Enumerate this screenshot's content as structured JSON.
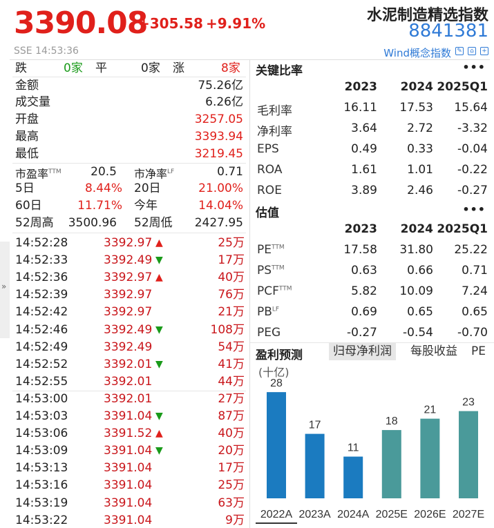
{
  "header": {
    "price": "3390.08",
    "change": "+305.58",
    "change_pct": "+9.91%",
    "name": "水泥制造精选指数",
    "code": "8841381",
    "exchange_time": "SSE  14:53:36",
    "concept_link": "Wind概念指数"
  },
  "stats": {
    "breadth": {
      "down_label": "跌",
      "down": "0家",
      "flat_label": "平",
      "flat": "0家",
      "up_label": "涨",
      "up": "8家"
    },
    "amount": {
      "label": "金额",
      "value": "75.26亿"
    },
    "volume": {
      "label": "成交量",
      "value": "6.26亿"
    },
    "open": {
      "label": "开盘",
      "value": "3257.05"
    },
    "high": {
      "label": "最高",
      "value": "3393.94"
    },
    "low": {
      "label": "最低",
      "value": "3219.45"
    },
    "pe": {
      "label": "市盈率TTM",
      "value": "20.5"
    },
    "pb": {
      "label": "市净率LF",
      "value": "0.71"
    },
    "d5": {
      "label": "5日",
      "value": "8.44%"
    },
    "d20": {
      "label": "20日",
      "value": "21.00%"
    },
    "d60": {
      "label": "60日",
      "value": "11.71%"
    },
    "ytd": {
      "label": "今年",
      "value": "14.04%"
    },
    "w52h": {
      "label": "52周高",
      "value": "3500.96"
    },
    "w52l": {
      "label": "52周低",
      "value": "2427.95"
    }
  },
  "ticks": [
    {
      "time": "14:52:28",
      "price": "3392.97",
      "dir": "up",
      "vol": "25万"
    },
    {
      "time": "14:52:33",
      "price": "3392.49",
      "dir": "down",
      "vol": "17万"
    },
    {
      "time": "14:52:36",
      "price": "3392.97",
      "dir": "up",
      "vol": "40万"
    },
    {
      "time": "14:52:39",
      "price": "3392.97",
      "dir": "",
      "vol": "76万"
    },
    {
      "time": "14:52:42",
      "price": "3392.97",
      "dir": "",
      "vol": "21万"
    },
    {
      "time": "14:52:46",
      "price": "3392.49",
      "dir": "down",
      "vol": "108万"
    },
    {
      "time": "14:52:49",
      "price": "3392.49",
      "dir": "",
      "vol": "54万"
    },
    {
      "time": "14:52:52",
      "price": "3392.01",
      "dir": "down",
      "vol": "41万"
    },
    {
      "time": "14:52:55",
      "price": "3392.01",
      "dir": "",
      "vol": "44万"
    },
    {
      "time": "14:53:00",
      "price": "3392.01",
      "dir": "",
      "vol": "27万"
    },
    {
      "time": "14:53:03",
      "price": "3391.04",
      "dir": "down",
      "vol": "87万"
    },
    {
      "time": "14:53:06",
      "price": "3391.52",
      "dir": "up",
      "vol": "40万"
    },
    {
      "time": "14:53:09",
      "price": "3391.04",
      "dir": "down",
      "vol": "20万"
    },
    {
      "time": "14:53:13",
      "price": "3391.04",
      "dir": "",
      "vol": "17万"
    },
    {
      "time": "14:53:16",
      "price": "3391.04",
      "dir": "",
      "vol": "25万"
    },
    {
      "time": "14:53:19",
      "price": "3391.04",
      "dir": "",
      "vol": "63万"
    },
    {
      "time": "14:53:22",
      "price": "3391.04",
      "dir": "",
      "vol": "9万"
    }
  ],
  "ratios": {
    "title": "关键比率",
    "cols": [
      "2023",
      "2024",
      "2025Q1"
    ],
    "rows": [
      {
        "label": "毛利率",
        "values": [
          "16.11",
          "17.53",
          "15.64"
        ]
      },
      {
        "label": "净利率",
        "values": [
          "3.64",
          "2.72",
          "-3.32"
        ]
      },
      {
        "label": "EPS",
        "values": [
          "0.49",
          "0.33",
          "-0.04"
        ]
      },
      {
        "label": "ROA",
        "values": [
          "1.61",
          "1.01",
          "-0.22"
        ]
      },
      {
        "label": "ROE",
        "values": [
          "3.89",
          "2.46",
          "-0.27"
        ]
      }
    ]
  },
  "valuation": {
    "title": "估值",
    "cols": [
      "2023",
      "2024",
      "2025Q1"
    ],
    "rows": [
      {
        "label": "PETTM",
        "values": [
          "17.58",
          "31.80",
          "25.22"
        ]
      },
      {
        "label": "PSTTM",
        "values": [
          "0.63",
          "0.66",
          "0.71"
        ]
      },
      {
        "label": "PCFTTM",
        "values": [
          "5.82",
          "10.09",
          "7.24"
        ]
      },
      {
        "label": "PBLF",
        "values": [
          "0.69",
          "0.65",
          "0.65"
        ]
      },
      {
        "label": "PEG",
        "values": [
          "-0.27",
          "-0.54",
          "-0.70"
        ]
      }
    ]
  },
  "forecast": {
    "title": "盈利预测",
    "tabs": [
      "归母净利润",
      "每股收益",
      "PE"
    ],
    "unit": "(十亿)"
  },
  "chart_data": {
    "type": "bar",
    "categories": [
      "2022A",
      "2023A",
      "2024A",
      "2025E",
      "2026E",
      "2027E"
    ],
    "values": [
      28,
      17,
      11,
      18,
      21,
      23
    ],
    "ylim": [
      0,
      30
    ],
    "colors": {
      "actual": "#1b7bc0",
      "estimate": "#4a9a9a"
    }
  },
  "colors": {
    "up": "#e0201b",
    "down": "#1a9a1a",
    "link": "#2f7ad6"
  }
}
